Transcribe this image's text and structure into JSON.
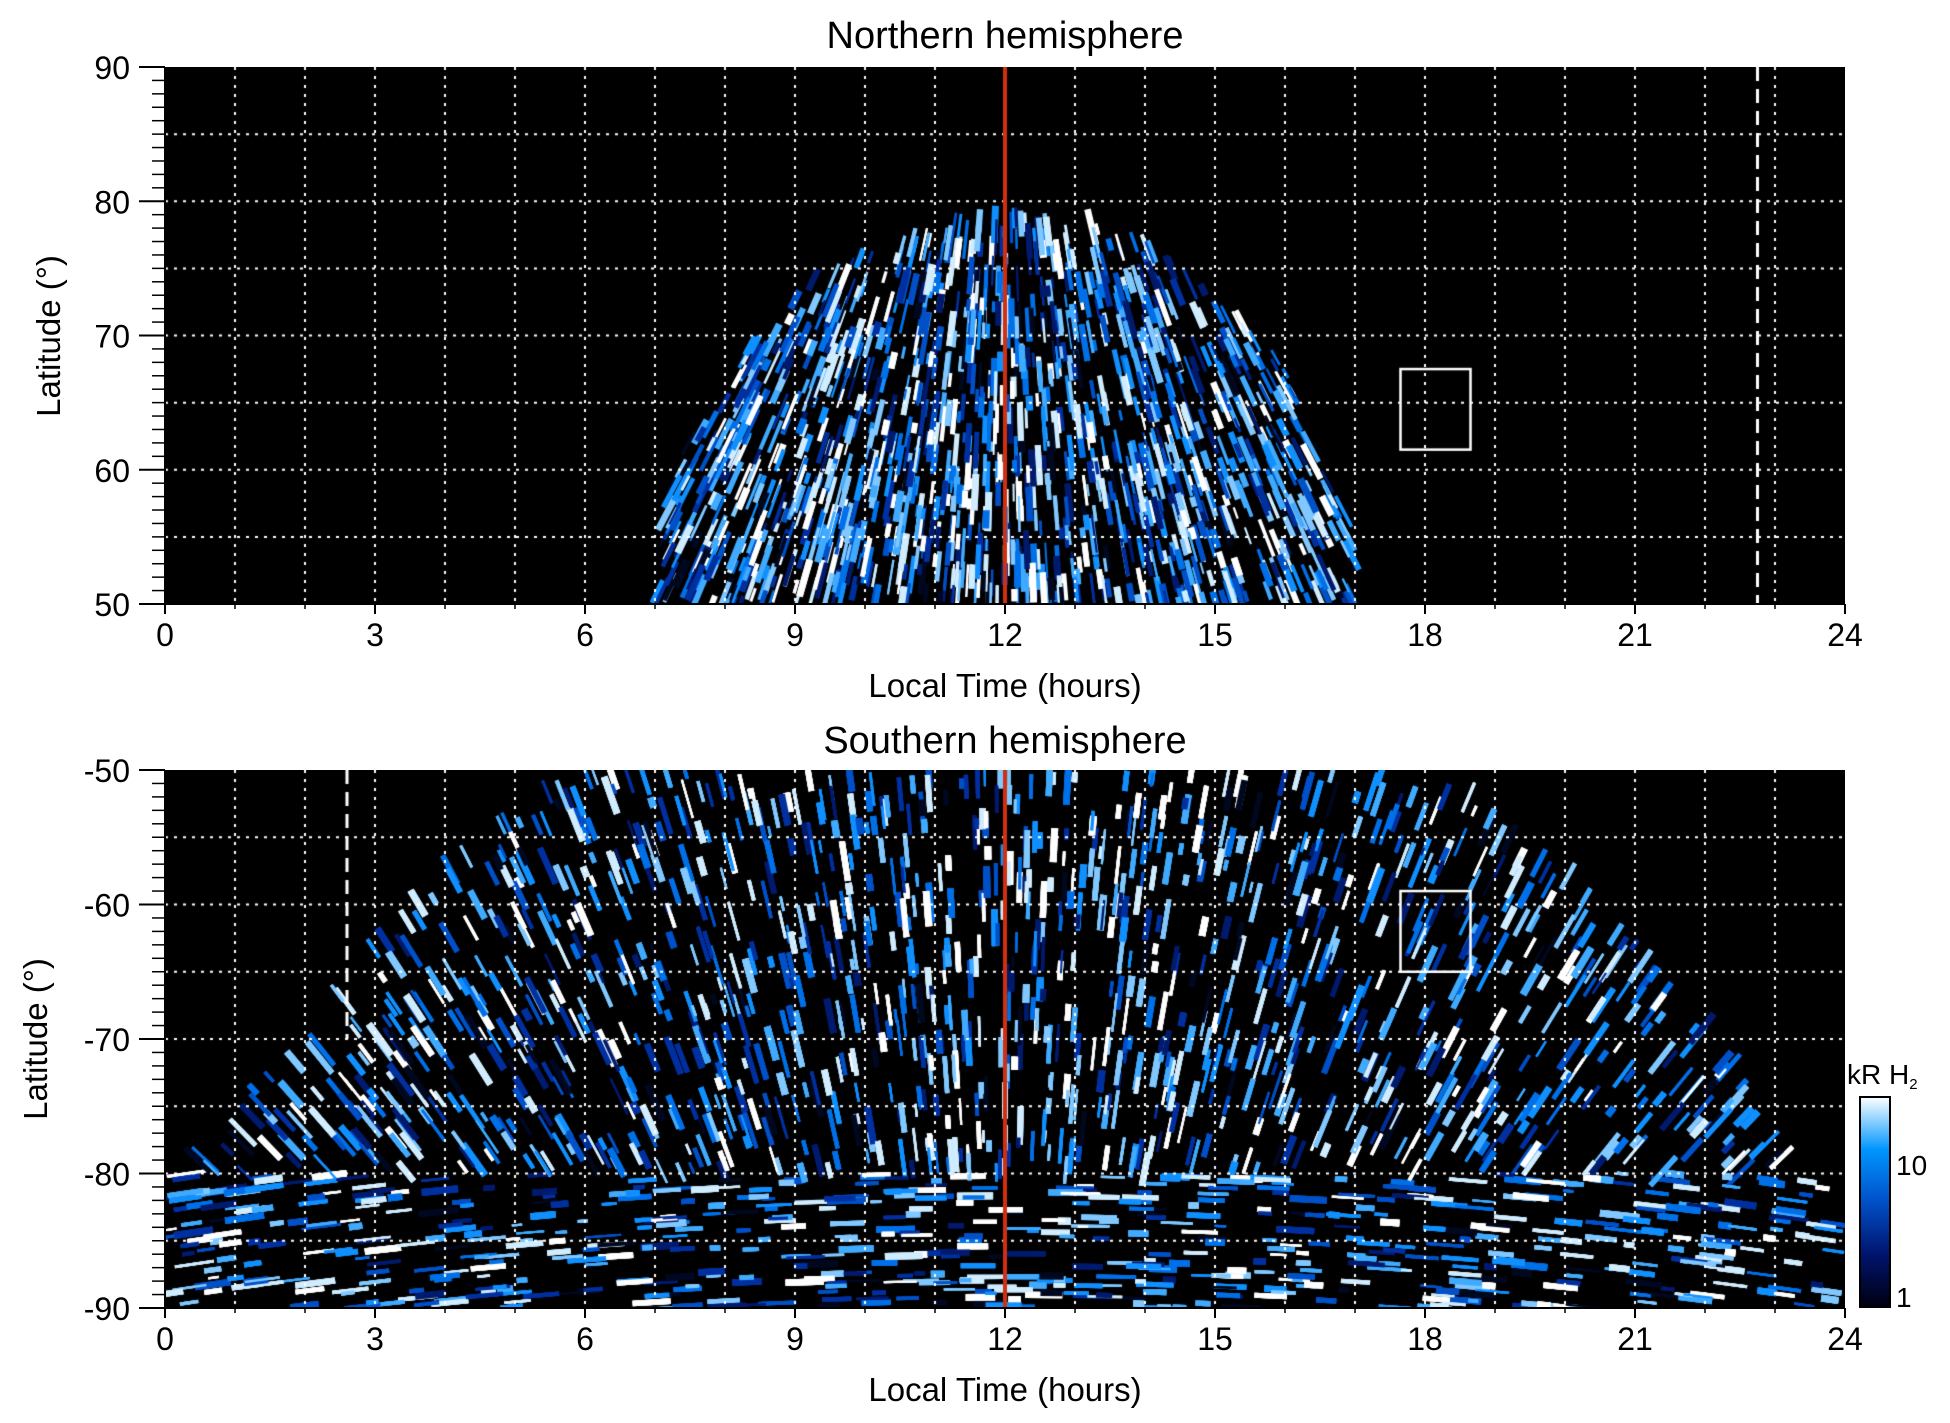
{
  "chart_data": [
    {
      "type": "heatmap",
      "title": "Northern hemisphere",
      "xlabel": "Local Time (hours)",
      "ylabel": "Latitude (°)",
      "xlim": [
        0,
        24
      ],
      "ylim": [
        50,
        90
      ],
      "xticks": [
        "0",
        "3",
        "6",
        "9",
        "12",
        "15",
        "18",
        "21",
        "24"
      ],
      "yticks": [
        "50",
        "60",
        "70",
        "80",
        "90"
      ],
      "grid": "dotted white, 1 h / 5°",
      "emission_extent": {
        "lt_range": [
          7,
          17
        ],
        "max_latitude": 79
      },
      "markers": {
        "red_line_lt": 12,
        "dashed_line_lt": 22.75,
        "box": {
          "lt": [
            17.65,
            18.65
          ],
          "lat": [
            61.5,
            67.5
          ]
        }
      }
    },
    {
      "type": "heatmap",
      "title": "Southern hemisphere",
      "xlabel": "Local Time (hours)",
      "ylabel": "Latitude (°)",
      "xlim": [
        0,
        24
      ],
      "ylim": [
        -90,
        -50
      ],
      "xticks": [
        "0",
        "3",
        "6",
        "9",
        "12",
        "15",
        "18",
        "21",
        "24"
      ],
      "yticks": [
        "-90",
        "-80",
        "-70",
        "-60",
        "-50"
      ],
      "grid": "dotted white, 1 h / 5°",
      "emission_extent": {
        "lt_range": [
          0,
          24
        ],
        "min_latitude": -50
      },
      "markers": {
        "red_line_lt": 12,
        "dashed_line_lt": 2.6,
        "dashed_line_lat": [
          -70,
          -50
        ],
        "box": {
          "lt": [
            17.65,
            18.65
          ],
          "lat": [
            -65,
            -59
          ]
        }
      }
    }
  ],
  "colorbar": {
    "label": "kR H",
    "label_sub": "2",
    "scale": "log",
    "range": [
      1,
      30
    ],
    "ticks": [
      "1",
      "10"
    ],
    "colors": [
      "#000010",
      "#00146e",
      "#0050c8",
      "#0096ff",
      "#ffffff"
    ]
  },
  "colors": {
    "marker_line": "#d03010",
    "grid": "#ffffff"
  }
}
